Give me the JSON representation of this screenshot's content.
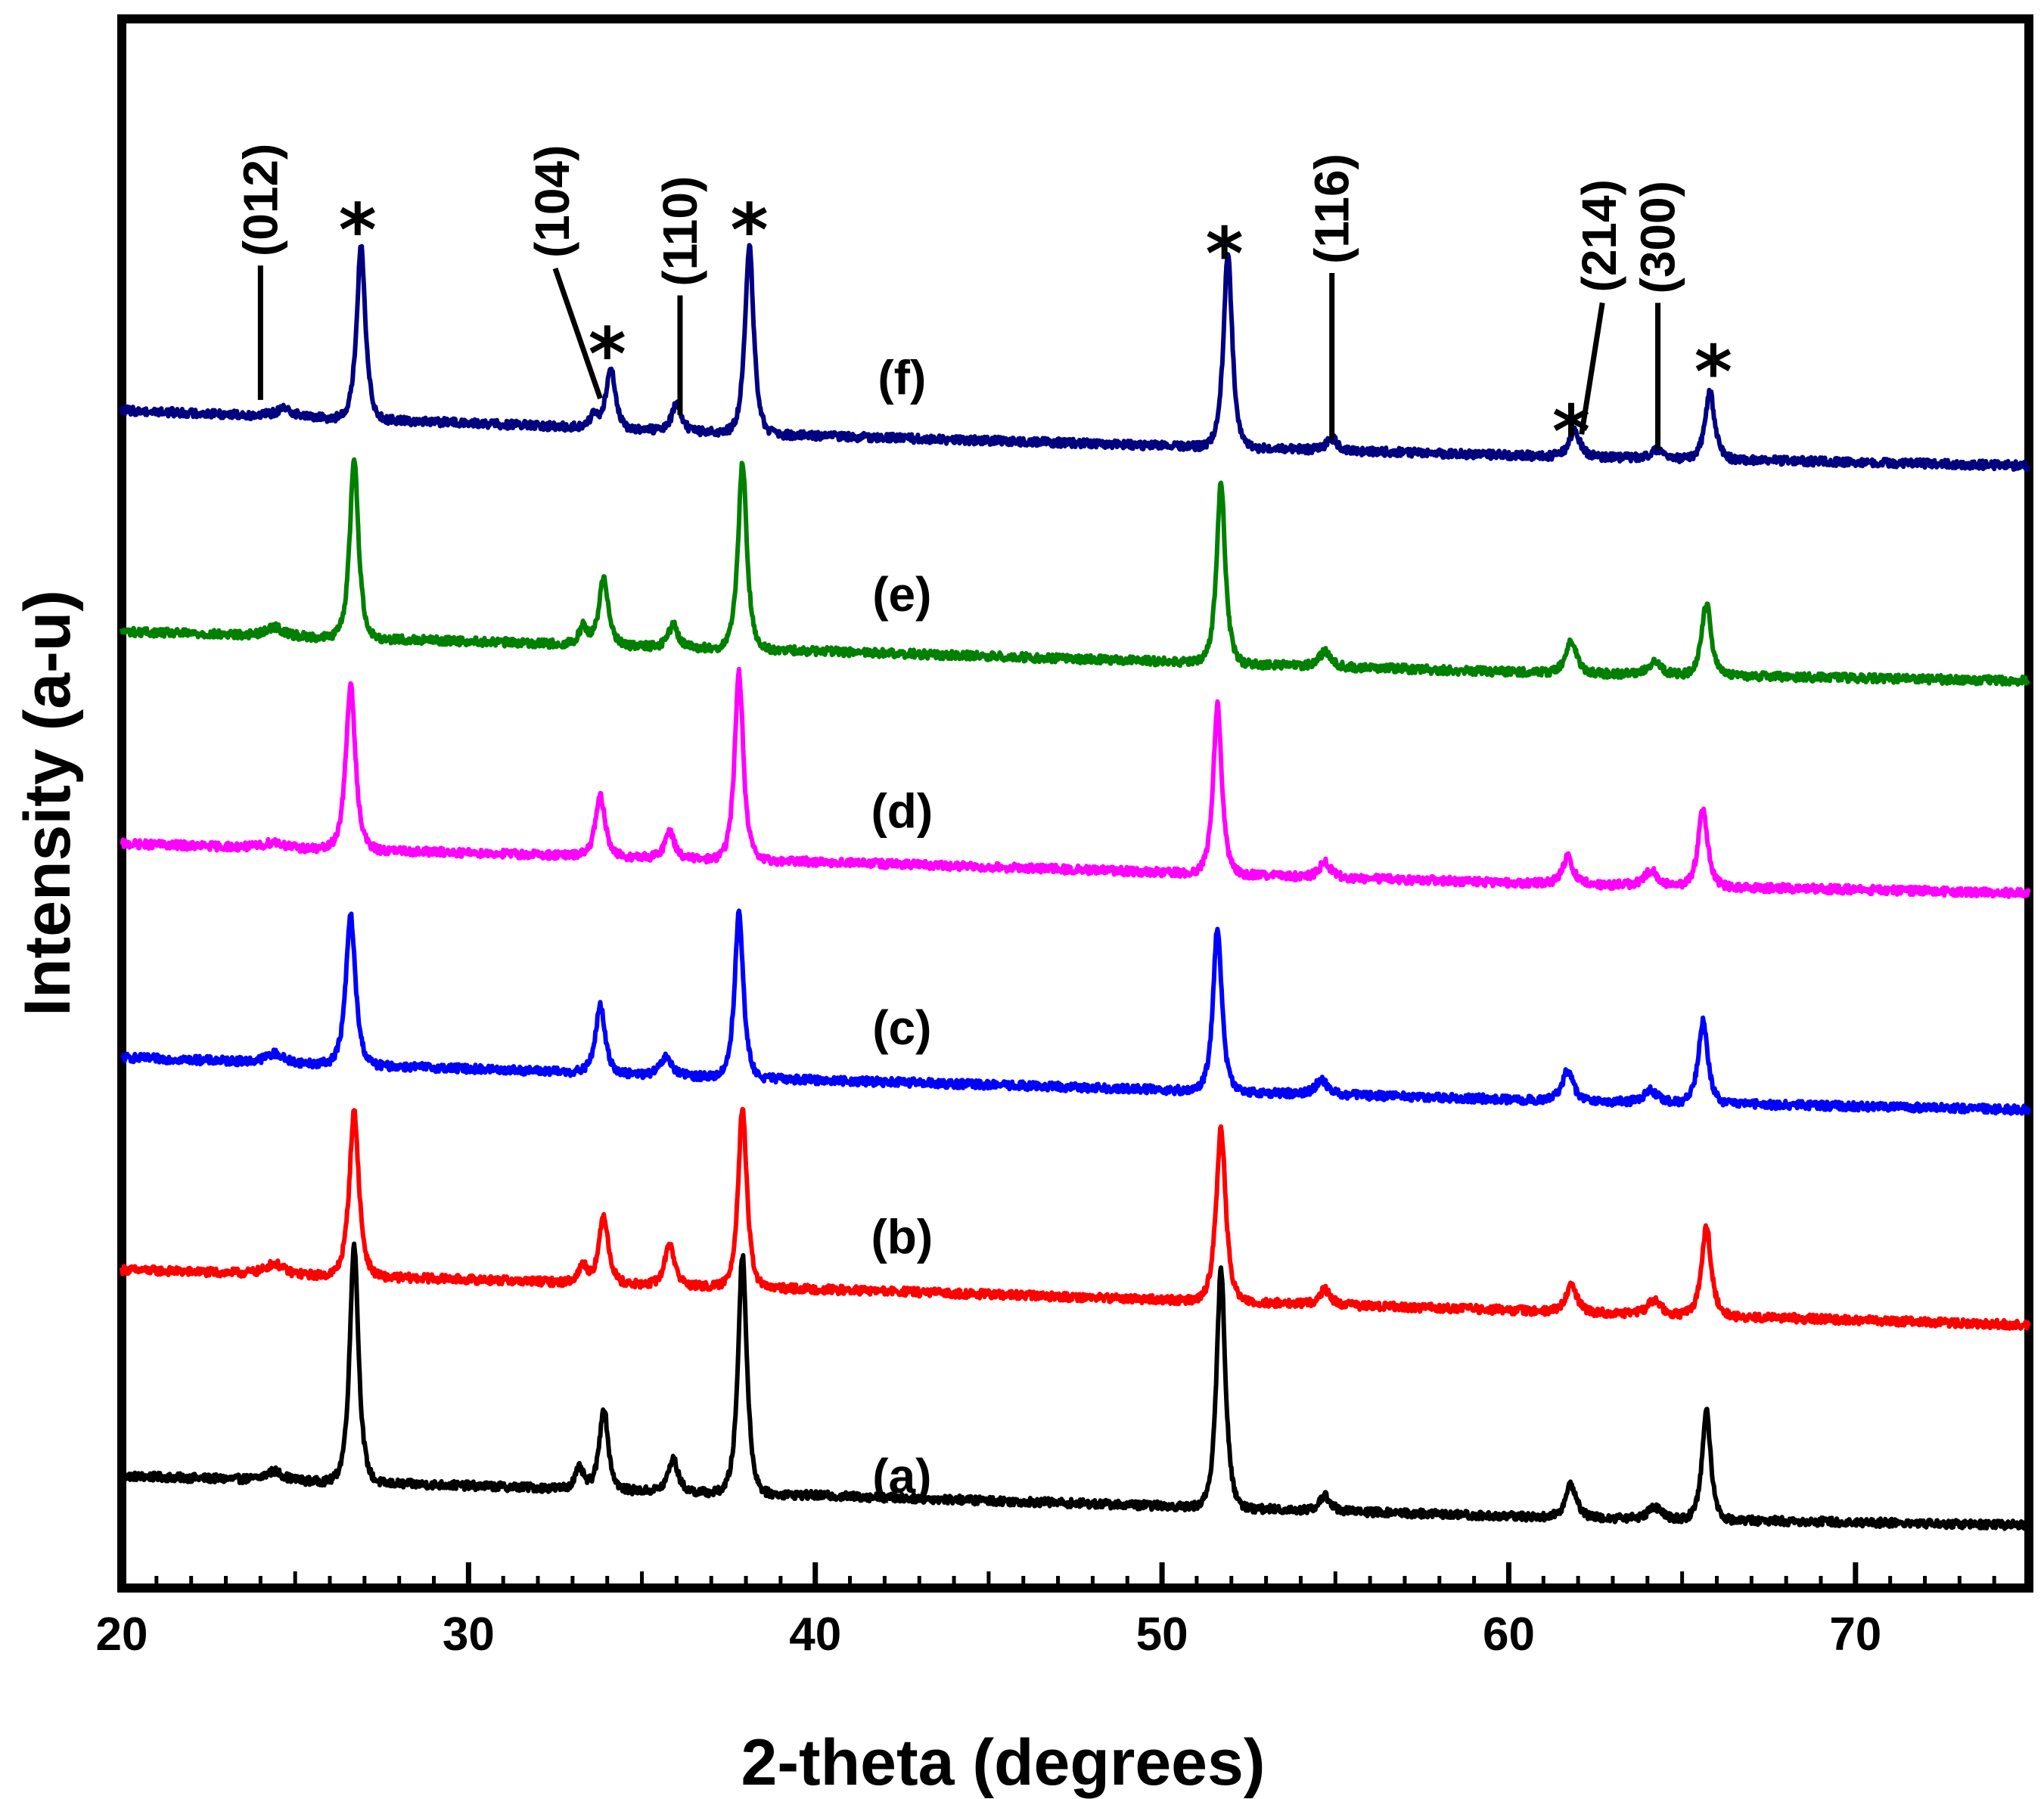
{
  "chart_data": {
    "type": "line",
    "title": "",
    "xlabel": "2-theta (degrees)",
    "ylabel": "Intensity (a-u)",
    "xlim": [
      20,
      75
    ],
    "ylim": [
      0,
      105
    ],
    "xticks": [
      20,
      30,
      40,
      50,
      60,
      70
    ],
    "xtick_labels": [
      "20",
      "30",
      "40",
      "50",
      "60",
      "70"
    ],
    "grid": false,
    "legend": "none",
    "series": [
      {
        "name": "(a)",
        "label": "(a)",
        "color": "#000000",
        "offset": 3,
        "label_pos": [
          42.5,
          7.5
        ],
        "baseline": [
          [
            20,
            7.5
          ],
          [
            40,
            6.2
          ],
          [
            60,
            4.8
          ],
          [
            75,
            4.2
          ]
        ],
        "peaks": [
          [
            24.4,
            0.6,
            0.4
          ],
          [
            26.7,
            16,
            0.2
          ],
          [
            33.2,
            1.4,
            0.2
          ],
          [
            33.9,
            5.5,
            0.2
          ],
          [
            35.9,
            2.2,
            0.22
          ],
          [
            37.9,
            16,
            0.2
          ],
          [
            51.7,
            16,
            0.2
          ],
          [
            54.7,
            1.0,
            0.25
          ],
          [
            61.8,
            2.2,
            0.25
          ],
          [
            64.2,
            0.8,
            0.3
          ],
          [
            65.7,
            7.3,
            0.2
          ]
        ]
      },
      {
        "name": "(b)",
        "label": "(b)",
        "color": "#ff0000",
        "offset": 20,
        "label_pos": [
          42.5,
          23.5
        ],
        "baseline": [
          [
            20,
            21.3
          ],
          [
            40,
            20.0
          ],
          [
            60,
            18.6
          ],
          [
            75,
            17.6
          ]
        ],
        "peaks": [
          [
            24.4,
            0.7,
            0.4
          ],
          [
            26.7,
            11,
            0.22
          ],
          [
            33.3,
            1.2,
            0.2
          ],
          [
            33.9,
            4.5,
            0.22
          ],
          [
            35.8,
            2.8,
            0.22
          ],
          [
            37.9,
            12,
            0.2
          ],
          [
            51.7,
            11.5,
            0.22
          ],
          [
            54.7,
            1.0,
            0.25
          ],
          [
            61.8,
            1.8,
            0.25
          ],
          [
            64.2,
            1.0,
            0.3
          ],
          [
            65.7,
            6.0,
            0.22
          ]
        ]
      },
      {
        "name": "(c)",
        "label": "(c)",
        "color": "#0000ff",
        "offset": 37,
        "label_pos": [
          42.5,
          37.5
        ],
        "baseline": [
          [
            20,
            35.5
          ],
          [
            40,
            34.0
          ],
          [
            60,
            32.7
          ],
          [
            75,
            32.0
          ]
        ],
        "peaks": [
          [
            24.4,
            0.6,
            0.4
          ],
          [
            26.6,
            10,
            0.22
          ],
          [
            33.8,
            4.5,
            0.22
          ],
          [
            35.7,
            1.2,
            0.25
          ],
          [
            37.8,
            11,
            0.2
          ],
          [
            51.6,
            11,
            0.2
          ],
          [
            54.6,
            1.0,
            0.25
          ],
          [
            61.7,
            2.0,
            0.25
          ],
          [
            64.1,
            0.8,
            0.3
          ],
          [
            65.6,
            5.5,
            0.22
          ]
        ]
      },
      {
        "name": "(d)",
        "label": "(d)",
        "color": "#ff00ff",
        "offset": 54,
        "label_pos": [
          42.5,
          52
        ],
        "baseline": [
          [
            20,
            49.8
          ],
          [
            40,
            48.6
          ],
          [
            60,
            47.2
          ],
          [
            75,
            46.5
          ]
        ],
        "peaks": [
          [
            24.4,
            0.4,
            0.4
          ],
          [
            26.6,
            11,
            0.22
          ],
          [
            33.8,
            4.0,
            0.22
          ],
          [
            35.8,
            1.8,
            0.22
          ],
          [
            37.8,
            12.5,
            0.2
          ],
          [
            51.6,
            11.3,
            0.2
          ],
          [
            54.7,
            1.0,
            0.25
          ],
          [
            61.7,
            1.8,
            0.25
          ],
          [
            64.1,
            1.0,
            0.3
          ],
          [
            65.6,
            5.2,
            0.22
          ]
        ]
      },
      {
        "name": "(e)",
        "label": "(e)",
        "color": "#008000",
        "offset": 71,
        "label_pos": [
          42.5,
          66.5
        ],
        "baseline": [
          [
            20,
            64.0
          ],
          [
            40,
            62.7
          ],
          [
            60,
            61.3
          ],
          [
            75,
            60.7
          ]
        ],
        "peaks": [
          [
            24.4,
            0.6,
            0.4
          ],
          [
            26.7,
            12,
            0.2
          ],
          [
            33.3,
            1.2,
            0.2
          ],
          [
            33.9,
            4.5,
            0.22
          ],
          [
            35.9,
            1.5,
            0.22
          ],
          [
            37.9,
            12.5,
            0.2
          ],
          [
            51.7,
            12,
            0.2
          ],
          [
            54.7,
            1.0,
            0.25
          ],
          [
            61.8,
            2.2,
            0.25
          ],
          [
            64.2,
            0.8,
            0.3
          ],
          [
            65.7,
            4.8,
            0.22
          ]
        ]
      },
      {
        "name": "(f)",
        "label": "(f)",
        "color": "#000080",
        "offset": 88,
        "label_pos": [
          42.5,
          81
        ],
        "baseline": [
          [
            20,
            78.8
          ],
          [
            40,
            77.1
          ],
          [
            60,
            75.8
          ],
          [
            75,
            75.1
          ]
        ],
        "peaks": [
          [
            24.7,
            0.5,
            0.4
          ],
          [
            26.9,
            11.5,
            0.2
          ],
          [
            33.6,
            0.8,
            0.2
          ],
          [
            34.1,
            4.2,
            0.2
          ],
          [
            36.0,
            1.8,
            0.22
          ],
          [
            38.1,
            12.5,
            0.2
          ],
          [
            51.9,
            13,
            0.2
          ],
          [
            54.9,
            0.8,
            0.25
          ],
          [
            61.9,
            1.7,
            0.25
          ],
          [
            64.3,
            0.6,
            0.3
          ],
          [
            65.8,
            4.5,
            0.22
          ]
        ]
      }
    ],
    "annotations": {
      "reference_lines": [
        {
          "label": "(012)",
          "x": 24.0,
          "y0": 79.5,
          "y1": 88.5
        },
        {
          "label": "(110)",
          "x": 36.1,
          "y0": 78.5,
          "y1": 86.5
        },
        {
          "label": "(116)",
          "x": 54.9,
          "y0": 76.8,
          "y1": 88.0
        },
        {
          "label": "(300)",
          "x": 64.3,
          "y0": 76.2,
          "y1": 86.0
        }
      ],
      "leader_lines": [
        {
          "label": "(104)",
          "from": [
            32.5,
            88.3
          ],
          "to": [
            33.8,
            79.6
          ]
        },
        {
          "label": "(214)",
          "from": [
            62.7,
            86.0
          ],
          "to": [
            62.1,
            77.2
          ]
        }
      ],
      "stars": [
        {
          "symbol": "*",
          "x": 26.8,
          "y": 91.8
        },
        {
          "symbol": "*",
          "x": 34.0,
          "y": 83.5
        },
        {
          "symbol": "*",
          "x": 38.1,
          "y": 91.8
        },
        {
          "symbol": "*",
          "x": 51.8,
          "y": 90.2
        },
        {
          "symbol": "*",
          "x": 61.8,
          "y": 78.3
        },
        {
          "symbol": "*",
          "x": 65.9,
          "y": 82.3
        }
      ]
    }
  }
}
